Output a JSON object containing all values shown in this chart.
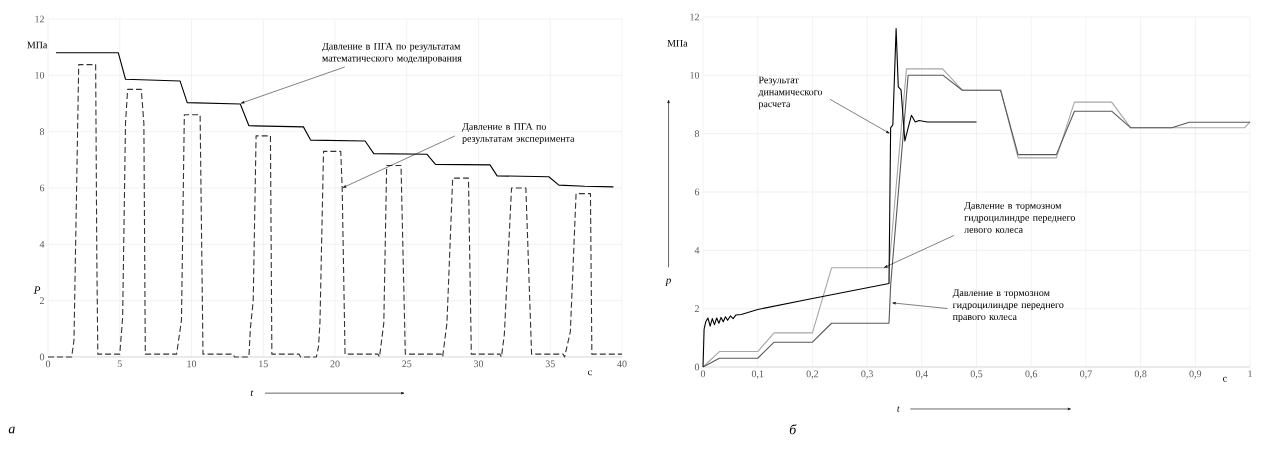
{
  "chart_data": [
    {
      "type": "line",
      "xlabel": "t",
      "ylabel": "P",
      "xlim": [
        0,
        40
      ],
      "ylim": [
        0,
        12
      ],
      "xticks": [
        0,
        5,
        10,
        15,
        20,
        25,
        30,
        35,
        40
      ],
      "yticks": [
        0,
        2,
        4,
        6,
        8,
        10,
        12
      ],
      "grid": true,
      "series": [
        {
          "color": "#000000",
          "line_style": "solid",
          "x": [
            0.56,
            4.9,
            5.4,
            9.2,
            9.7,
            13.4,
            14.0,
            17.8,
            18.3,
            22.1,
            22.7,
            26.4,
            27.0,
            30.8,
            31.3,
            34.9,
            35.6,
            37.4,
            39.4
          ],
          "values": [
            10.8,
            10.8,
            9.86,
            9.8,
            9.03,
            8.98,
            8.21,
            8.17,
            7.7,
            7.67,
            7.22,
            7.2,
            6.84,
            6.82,
            6.43,
            6.4,
            6.1,
            6.06,
            6.04
          ]
        },
        {
          "color": "#333333",
          "line_style": "dashed",
          "x": [
            0,
            1.65,
            1.81,
            2.14,
            3.32,
            3.4,
            3.47,
            5.0,
            5.2,
            5.4,
            5.55,
            6.5,
            6.68,
            6.78,
            8.96,
            9.3,
            9.5,
            10.6,
            10.8,
            12.9,
            13.0,
            14.0,
            14.1,
            14.3,
            14.5,
            15.5,
            15.6,
            17.5,
            17.6,
            18.7,
            18.85,
            18.95,
            19.2,
            20.4,
            20.5,
            20.7,
            23.0,
            23.1,
            23.4,
            23.6,
            24.6,
            24.9,
            27.4,
            27.5,
            27.8,
            28.2,
            29.3,
            29.5,
            31.5,
            31.6,
            31.8,
            32.3,
            33.3,
            33.7,
            35.9,
            36.0,
            36.4,
            36.8,
            37.8,
            37.9,
            40.0
          ],
          "values": [
            0,
            0,
            0.6,
            10.38,
            10.38,
            3.6,
            0.1,
            0.1,
            1.4,
            8.3,
            9.5,
            9.5,
            8.3,
            0.1,
            0.1,
            1.3,
            8.6,
            8.6,
            0.1,
            0.1,
            0,
            0,
            1.0,
            2.0,
            7.85,
            7.85,
            0.1,
            0.1,
            0,
            0,
            0.37,
            1.2,
            7.3,
            7.3,
            6.0,
            0.1,
            0.1,
            0,
            1.2,
            6.8,
            6.8,
            0.1,
            0.1,
            0,
            1.2,
            6.35,
            6.35,
            0.1,
            0.1,
            0,
            0.8,
            6.0,
            6.0,
            0.1,
            0.1,
            0,
            0.9,
            5.8,
            5.8,
            0.1,
            0.1
          ]
        }
      ],
      "annotations": [
        "МПа",
        "с",
        "а",
        {
          "text": "Давление в ПГА по результатам математического моделирования",
          "x": 13.4,
          "y": 9.0
        },
        {
          "text": "Давление в ПГА по результатам эксперимента",
          "x": 20.5,
          "y": 6.0
        }
      ]
    },
    {
      "type": "line",
      "xlabel": "t",
      "ylabel": "p",
      "xlim": [
        0,
        1
      ],
      "ylim": [
        0,
        12
      ],
      "xticks": [
        0,
        {
          "value": 0.1,
          "label": "0,1"
        },
        {
          "value": 0.2,
          "label": "0,2"
        },
        {
          "value": 0.3,
          "label": "0,3"
        },
        {
          "value": 0.4,
          "label": "0,4"
        },
        {
          "value": 0.5,
          "label": "0,5"
        },
        {
          "value": 0.6,
          "label": "0,6"
        },
        {
          "value": 0.7,
          "label": "0,7"
        },
        {
          "value": 0.8,
          "label": "0,8"
        },
        {
          "value": 0.9,
          "label": "0,9"
        },
        1
      ],
      "yticks": [
        0,
        2,
        4,
        6,
        8,
        10,
        12
      ],
      "grid": true,
      "series": [
        {
          "color": "#a6a6a6",
          "x": [
            0,
            0.03,
            0.1,
            0.13,
            0.2,
            0.235,
            0.34,
            0.372,
            0.438,
            0.474,
            0.544,
            0.576,
            0.646,
            0.679,
            0.747,
            0.782,
            0.99,
            1.0
          ],
          "values": [
            0,
            0.53,
            0.53,
            1.17,
            1.17,
            3.4,
            3.4,
            10.22,
            10.22,
            9.49,
            9.49,
            7.17,
            7.17,
            9.08,
            9.08,
            8.2,
            8.2,
            8.4
          ]
        },
        {
          "color": "#595959",
          "x": [
            0,
            0.03,
            0.1,
            0.13,
            0.2,
            0.235,
            0.34,
            0.343,
            0.375,
            0.439,
            0.474,
            0.544,
            0.576,
            0.646,
            0.679,
            0.747,
            0.782,
            0.857,
            0.889,
            1.0
          ],
          "values": [
            0,
            0.3,
            0.3,
            0.85,
            0.85,
            1.5,
            1.5,
            2.8,
            10.0,
            10.0,
            9.49,
            9.49,
            7.28,
            7.28,
            8.77,
            8.77,
            8.2,
            8.2,
            8.39,
            8.39
          ]
        },
        {
          "color": "#000000",
          "x": [
            0,
            0.002,
            0.005,
            0.009,
            0.013,
            0.017,
            0.021,
            0.025,
            0.029,
            0.033,
            0.037,
            0.041,
            0.045,
            0.05,
            0.055,
            0.06,
            0.07,
            0.1,
            0.2,
            0.34,
            0.343,
            0.347,
            0.353,
            0.357,
            0.362,
            0.369,
            0.375,
            0.381,
            0.388,
            0.395,
            0.41,
            0.5
          ],
          "values": [
            0,
            1.3,
            1.55,
            1.68,
            1.4,
            1.66,
            1.45,
            1.68,
            1.5,
            1.7,
            1.55,
            1.72,
            1.6,
            1.75,
            1.66,
            1.78,
            1.8,
            1.97,
            2.35,
            2.86,
            8.2,
            8.3,
            11.6,
            9.6,
            9.5,
            7.75,
            8.2,
            8.63,
            8.4,
            8.45,
            8.4,
            8.4
          ]
        }
      ],
      "annotations": [
        "МПа",
        "с",
        "б",
        {
          "text": "Результат динамического расчета",
          "x": 0.342,
          "y": 8.0
        },
        {
          "text": "Давление в тормозном гидроцилиндре переднего левого колеса",
          "x": 0.33,
          "y": 3.4
        },
        {
          "text": "Давление в тормозном гидроцилиндре переднего правого колеса",
          "x": 0.345,
          "y": 2.2
        }
      ]
    }
  ]
}
